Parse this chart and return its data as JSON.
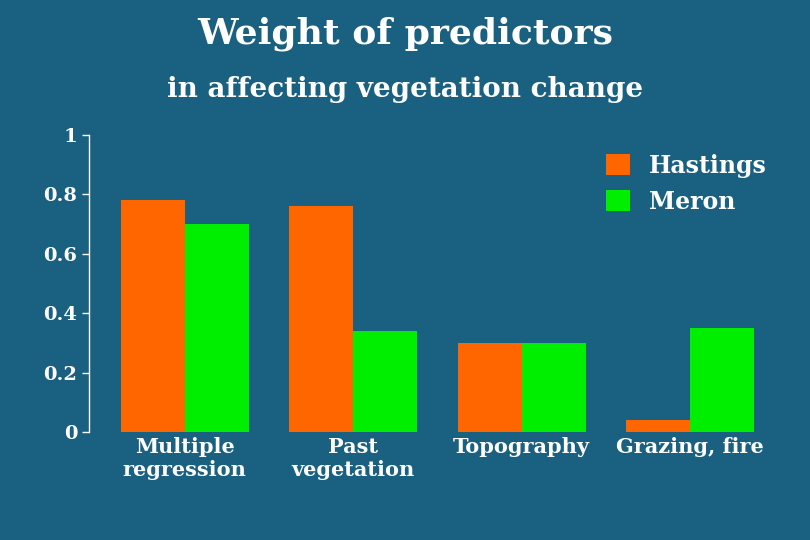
{
  "title": "Weight of predictors",
  "subtitle": "in affecting vegetation change",
  "categories": [
    "Multiple\nregression",
    "Past\nvegetation",
    "Topography",
    "Grazing, fire"
  ],
  "hastings": [
    0.78,
    0.76,
    0.3,
    0.04
  ],
  "meron": [
    0.7,
    0.34,
    0.3,
    0.35
  ],
  "bar_color_hastings": "#FF6600",
  "bar_color_meron": "#00EE00",
  "background_color": "#1A6080",
  "text_color": "#FFFFFF",
  "ylim": [
    0,
    1.0
  ],
  "yticks": [
    0,
    0.2,
    0.4,
    0.6,
    0.8,
    1
  ],
  "ytick_labels": [
    "0",
    "0.2",
    "0.4",
    "0.6",
    "0.8",
    "1"
  ],
  "legend_labels": [
    "Hastings",
    "Meron"
  ],
  "title_fontsize": 26,
  "subtitle_fontsize": 20,
  "tick_fontsize": 14,
  "label_fontsize": 15,
  "legend_fontsize": 17,
  "bar_width": 0.38
}
